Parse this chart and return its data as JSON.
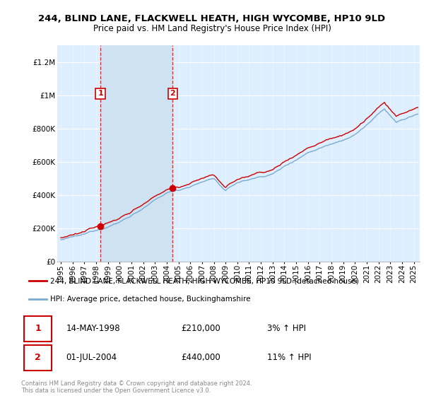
{
  "title": "244, BLIND LANE, FLACKWELL HEATH, HIGH WYCOMBE, HP10 9LD",
  "subtitle": "Price paid vs. HM Land Registry's House Price Index (HPI)",
  "ylabel_ticks": [
    "£0",
    "£200K",
    "£400K",
    "£600K",
    "£800K",
    "£1M",
    "£1.2M"
  ],
  "ytick_values": [
    0,
    200000,
    400000,
    600000,
    800000,
    1000000,
    1200000
  ],
  "ylim": [
    0,
    1300000
  ],
  "xlim_start": 1994.7,
  "xlim_end": 2025.5,
  "legend_line1": "244, BLIND LANE, FLACKWELL HEATH, HIGH WYCOMBE, HP10 9LD (detached house)",
  "legend_line2": "HPI: Average price, detached house, Buckinghamshire",
  "sale1_date": "14-MAY-1998",
  "sale1_price": "£210,000",
  "sale1_hpi": "3% ↑ HPI",
  "sale1_year": 1998.37,
  "sale1_value": 210000,
  "sale2_date": "01-JUL-2004",
  "sale2_price": "£440,000",
  "sale2_hpi": "11% ↑ HPI",
  "sale2_year": 2004.5,
  "sale2_value": 440000,
  "line_color_red": "#cc0000",
  "line_color_blue": "#7aabcf",
  "dot_color_red": "#cc0000",
  "bg_color": "#ddeeff",
  "shade_color": "#cce0f0",
  "grid_color": "#ffffff",
  "copyright_text": "Contains HM Land Registry data © Crown copyright and database right 2024.\nThis data is licensed under the Open Government Licence v3.0.",
  "title_fontsize": 9.5,
  "subtitle_fontsize": 8.5,
  "axis_fontsize": 7.5,
  "legend_fontsize": 8
}
